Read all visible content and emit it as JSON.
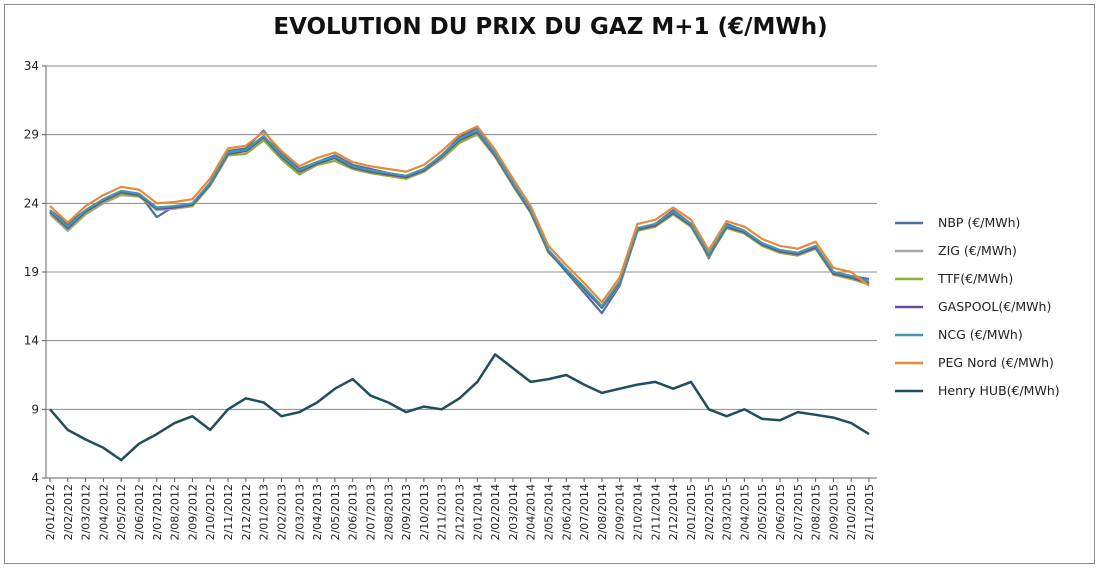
{
  "chart_data": {
    "type": "line",
    "title": "EVOLUTION DU PRIX DU GAZ M+1 (€/MWh)",
    "ylim": [
      4,
      34
    ],
    "yticks": [
      4,
      9,
      14,
      19,
      24,
      29,
      34
    ],
    "grid": "horizontal",
    "legend_position": "right",
    "categories": [
      "2/01/2012",
      "2/02/2012",
      "2/03/2012",
      "2/04/2012",
      "2/05/2012",
      "2/06/2012",
      "2/07/2012",
      "2/08/2012",
      "2/09/2012",
      "2/10/2012",
      "2/11/2012",
      "2/12/2012",
      "2/01/2013",
      "2/02/2013",
      "2/03/2013",
      "2/04/2013",
      "2/05/2013",
      "2/06/2013",
      "2/07/2013",
      "2/08/2013",
      "2/09/2013",
      "2/10/2013",
      "2/11/2013",
      "2/12/2013",
      "2/01/2014",
      "2/02/2014",
      "2/03/2014",
      "2/04/2014",
      "2/05/2014",
      "2/06/2014",
      "2/07/2014",
      "2/08/2014",
      "2/09/2014",
      "2/10/2014",
      "2/11/2014",
      "2/12/2014",
      "2/01/2015",
      "2/02/2015",
      "2/03/2015",
      "2/04/2015",
      "2/05/2015",
      "2/06/2015",
      "2/07/2015",
      "2/08/2015",
      "2/09/2015",
      "2/10/2015",
      "2/11/2015"
    ],
    "series": [
      {
        "name": "NBP (€/MWh)",
        "color": "#4a6ea8",
        "values": [
          23.5,
          22.5,
          23.5,
          24.3,
          24.9,
          24.7,
          23.0,
          23.8,
          23.9,
          25.5,
          27.8,
          28.0,
          29.3,
          27.6,
          26.5,
          27.0,
          27.5,
          26.8,
          26.5,
          26.2,
          26.0,
          26.5,
          27.5,
          28.8,
          29.5,
          27.7,
          25.5,
          23.5,
          20.5,
          19.0,
          17.5,
          16.0,
          18.0,
          22.0,
          22.5,
          23.5,
          22.5,
          20.0,
          22.5,
          22.0,
          21.0,
          20.5,
          20.3,
          20.8,
          19.0,
          18.7,
          18.5
        ]
      },
      {
        "name": "ZIG (€/MWh)",
        "color": "#a6a6a6",
        "values": [
          23.2,
          22.0,
          23.2,
          24.0,
          24.6,
          24.5,
          23.5,
          23.6,
          23.8,
          25.3,
          27.5,
          27.6,
          28.6,
          27.3,
          26.2,
          26.8,
          27.1,
          26.5,
          26.2,
          26.0,
          25.8,
          26.3,
          27.2,
          28.4,
          29.0,
          27.4,
          25.3,
          23.3,
          20.5,
          19.2,
          17.8,
          16.5,
          18.2,
          22.0,
          22.3,
          23.2,
          22.3,
          20.2,
          22.2,
          21.8,
          20.9,
          20.4,
          20.2,
          20.7,
          18.8,
          18.5,
          18.2
        ]
      },
      {
        "name": "TTF(€/MWh)",
        "color": "#8cae3a",
        "values": [
          23.3,
          22.1,
          23.3,
          24.1,
          24.7,
          24.5,
          23.6,
          23.7,
          23.8,
          25.3,
          27.5,
          27.6,
          28.6,
          27.2,
          26.1,
          26.8,
          27.1,
          26.5,
          26.2,
          26.0,
          25.8,
          26.3,
          27.3,
          28.4,
          29.1,
          27.4,
          25.3,
          23.3,
          20.4,
          19.1,
          17.7,
          16.4,
          18.1,
          22.0,
          22.3,
          23.2,
          22.3,
          20.1,
          22.2,
          21.8,
          20.9,
          20.4,
          20.2,
          20.7,
          18.8,
          18.5,
          18.1
        ]
      },
      {
        "name": "GASPOOL(€/MWh)",
        "color": "#6b4a9a",
        "values": [
          23.4,
          22.2,
          23.4,
          24.2,
          24.8,
          24.6,
          23.6,
          23.7,
          23.9,
          25.4,
          27.6,
          27.8,
          28.8,
          27.4,
          26.3,
          26.9,
          27.3,
          26.6,
          26.3,
          26.1,
          25.9,
          26.4,
          27.4,
          28.6,
          29.2,
          27.5,
          25.4,
          23.4,
          20.5,
          19.1,
          17.8,
          16.4,
          18.2,
          22.1,
          22.4,
          23.3,
          22.4,
          20.2,
          22.3,
          21.9,
          21.0,
          20.5,
          20.3,
          20.8,
          18.9,
          18.6,
          18.2
        ]
      },
      {
        "name": "NCG (€/MWh)",
        "color": "#3f9ab0",
        "values": [
          23.5,
          22.3,
          23.5,
          24.3,
          24.9,
          24.7,
          23.7,
          23.8,
          24.0,
          25.5,
          27.7,
          27.9,
          28.9,
          27.5,
          26.4,
          27.0,
          27.4,
          26.7,
          26.4,
          26.2,
          26.0,
          26.5,
          27.5,
          28.7,
          29.3,
          27.6,
          25.5,
          23.5,
          20.6,
          19.2,
          17.9,
          16.5,
          18.3,
          22.2,
          22.5,
          23.4,
          22.5,
          20.3,
          22.4,
          22.0,
          21.1,
          20.6,
          20.4,
          20.9,
          19.0,
          18.7,
          18.3
        ]
      },
      {
        "name": "PEG Nord (€/MWh)",
        "color": "#e8893a",
        "values": [
          23.8,
          22.6,
          23.8,
          24.6,
          25.2,
          25.0,
          24.0,
          24.1,
          24.3,
          25.8,
          28.0,
          28.2,
          29.2,
          27.8,
          26.7,
          27.3,
          27.7,
          27.0,
          26.7,
          26.5,
          26.3,
          26.8,
          27.8,
          29.0,
          29.6,
          27.9,
          25.8,
          23.8,
          20.9,
          19.5,
          18.2,
          16.8,
          18.6,
          22.5,
          22.8,
          23.7,
          22.8,
          20.6,
          22.7,
          22.3,
          21.4,
          20.9,
          20.7,
          21.2,
          19.3,
          19.0,
          18.0
        ]
      },
      {
        "name": "Henry HUB(€/MWh)",
        "color": "#1f4e5f",
        "values": [
          9.0,
          7.5,
          6.8,
          6.2,
          5.3,
          6.5,
          7.2,
          8.0,
          8.5,
          7.5,
          9.0,
          9.8,
          9.5,
          8.5,
          8.8,
          9.5,
          10.5,
          11.2,
          10.0,
          9.5,
          8.8,
          9.2,
          9.0,
          9.8,
          11.0,
          13.0,
          12.0,
          11.0,
          11.2,
          11.5,
          10.8,
          10.2,
          10.5,
          10.8,
          11.0,
          10.5,
          11.0,
          9.0,
          8.5,
          9.0,
          8.3,
          8.2,
          8.8,
          8.6,
          8.4,
          8.0,
          7.2
        ]
      }
    ]
  }
}
